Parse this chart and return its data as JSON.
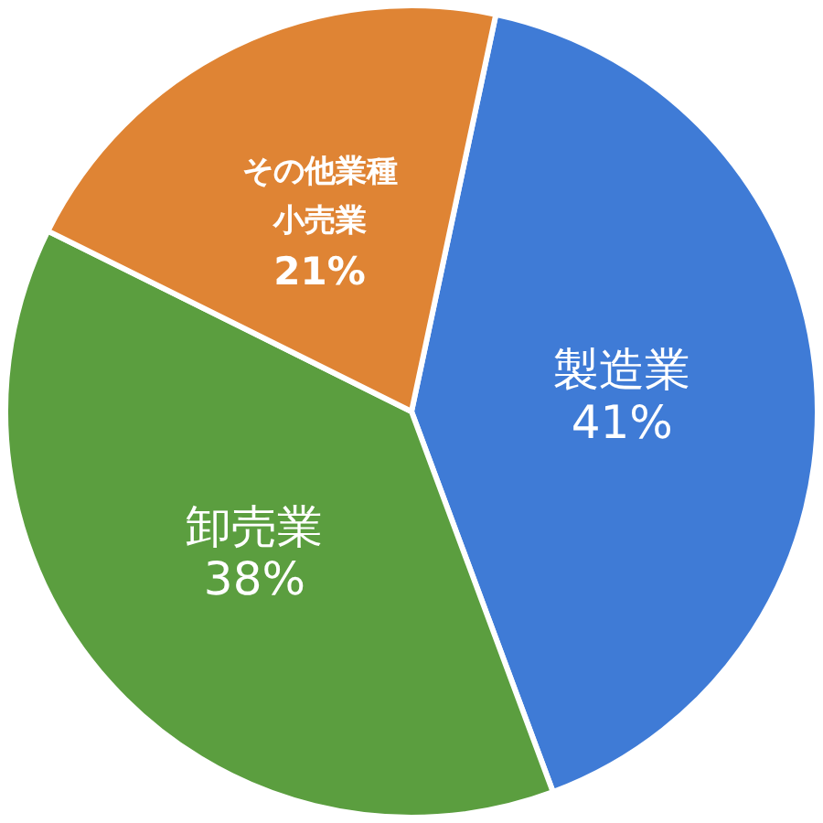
{
  "chart_data": {
    "type": "pie",
    "categories": [
      "製造業",
      "卸売業",
      "その他業種小売業"
    ],
    "values": [
      41,
      38,
      21
    ],
    "value_labels": [
      "41%",
      "38%",
      "21%"
    ],
    "colors": [
      "#3f7bd6",
      "#5b9e3f",
      "#df8434"
    ]
  }
}
